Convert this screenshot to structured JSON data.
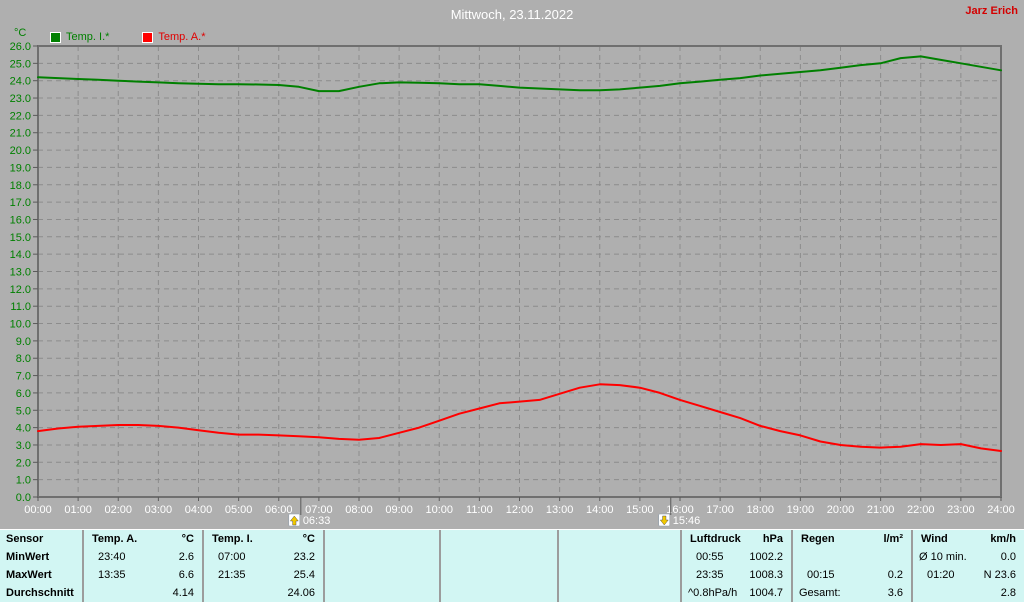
{
  "header": {
    "title": "Mittwoch, 23.11.2022",
    "owner": "Jarz Erich"
  },
  "legend": {
    "axis_unit": "°C",
    "items": [
      {
        "label": "Temp. I.*",
        "color": "#008000"
      },
      {
        "label": "Temp. A.*",
        "color": "#FF0000"
      }
    ]
  },
  "chart_data": {
    "type": "line",
    "title": "Mittwoch, 23.11.2022",
    "ylabel": "°C",
    "ylim": [
      0,
      26
    ],
    "ytick_step": 1.0,
    "xlim_hours": [
      0,
      24
    ],
    "x_ticks": [
      "00:00",
      "01:00",
      "02:00",
      "03:00",
      "04:00",
      "05:00",
      "06:00",
      "07:00",
      "08:00",
      "09:00",
      "10:00",
      "11:00",
      "12:00",
      "13:00",
      "14:00",
      "15:00",
      "16:00",
      "17:00",
      "18:00",
      "19:00",
      "20:00",
      "21:00",
      "22:00",
      "23:00",
      "24:00"
    ],
    "grid": true,
    "legend_position": "top-left",
    "series": [
      {
        "name": "Temp. I.*",
        "color": "#008000",
        "x_hours": [
          0,
          0.5,
          1,
          1.5,
          2,
          2.5,
          3,
          3.5,
          4,
          4.5,
          5,
          5.5,
          6,
          6.5,
          7,
          7.5,
          8,
          8.5,
          9,
          9.5,
          10,
          10.5,
          11,
          11.5,
          12,
          12.5,
          13,
          13.5,
          14,
          14.5,
          15,
          15.5,
          16,
          16.5,
          17,
          17.5,
          18,
          18.5,
          19,
          19.5,
          20,
          20.5,
          21,
          21.5,
          22,
          22.5,
          23,
          23.5,
          24
        ],
        "values": [
          24.2,
          24.15,
          24.1,
          24.05,
          24.0,
          23.95,
          23.9,
          23.85,
          23.82,
          23.8,
          23.8,
          23.78,
          23.75,
          23.65,
          23.4,
          23.4,
          23.65,
          23.85,
          23.9,
          23.88,
          23.85,
          23.8,
          23.8,
          23.7,
          23.6,
          23.55,
          23.5,
          23.45,
          23.45,
          23.5,
          23.6,
          23.7,
          23.85,
          23.95,
          24.05,
          24.15,
          24.3,
          24.4,
          24.5,
          24.6,
          24.75,
          24.9,
          25.0,
          25.3,
          25.4,
          25.2,
          25.0,
          24.8,
          24.6
        ]
      },
      {
        "name": "Temp. A.*",
        "color": "#FF0000",
        "x_hours": [
          0,
          0.5,
          1,
          1.5,
          2,
          2.5,
          3,
          3.5,
          4,
          4.5,
          5,
          5.5,
          6,
          6.5,
          7,
          7.5,
          8,
          8.5,
          9,
          9.5,
          10,
          10.5,
          11,
          11.5,
          12,
          12.5,
          13,
          13.5,
          14,
          14.5,
          15,
          15.5,
          16,
          16.5,
          17,
          17.5,
          18,
          18.5,
          19,
          19.5,
          20,
          20.5,
          21,
          21.5,
          22,
          22.5,
          23,
          23.5,
          24
        ],
        "values": [
          3.8,
          3.95,
          4.05,
          4.1,
          4.15,
          4.15,
          4.1,
          4.0,
          3.85,
          3.7,
          3.6,
          3.6,
          3.55,
          3.5,
          3.45,
          3.35,
          3.3,
          3.4,
          3.7,
          4.0,
          4.4,
          4.8,
          5.1,
          5.4,
          5.5,
          5.6,
          5.95,
          6.3,
          6.5,
          6.45,
          6.3,
          6.0,
          5.6,
          5.25,
          4.9,
          4.55,
          4.1,
          3.8,
          3.55,
          3.2,
          3.0,
          2.9,
          2.85,
          2.9,
          3.05,
          3.0,
          3.05,
          2.8,
          2.65
        ]
      }
    ],
    "annotations": [
      {
        "type": "sunrise",
        "label": "06:33",
        "hour": 6.55
      },
      {
        "type": "sunset",
        "label": "15:46",
        "hour": 15.77
      }
    ]
  },
  "stats_table": {
    "row_labels": [
      "Sensor",
      "MinWert",
      "MaxWert",
      "Durchschnitt"
    ],
    "columns": [
      {
        "name": "Temp. A.",
        "unit": "°C",
        "cells": [
          [
            "23:40",
            "2.6"
          ],
          [
            "13:35",
            "6.6"
          ],
          [
            "",
            "4.14"
          ]
        ]
      },
      {
        "name": "Temp. I.",
        "unit": "°C",
        "cells": [
          [
            "07:00",
            "23.2"
          ],
          [
            "21:35",
            "25.4"
          ],
          [
            "",
            "24.06"
          ]
        ]
      },
      {
        "name": "Luftdruck",
        "unit": "hPa",
        "cells": [
          [
            "00:55",
            "1002.2"
          ],
          [
            "23:35",
            "1008.3"
          ],
          [
            "^0.8hPa/h",
            "1004.7"
          ]
        ]
      },
      {
        "name": "Regen",
        "unit": "l/m²",
        "cells": [
          [
            "",
            ""
          ],
          [
            "00:15",
            "0.2"
          ],
          [
            "Gesamt:",
            "3.6"
          ]
        ]
      },
      {
        "name": "Wind",
        "unit": "km/h",
        "cells": [
          [
            "Ø 10 min.",
            "0.0"
          ],
          [
            "01:20",
            "N 23.6"
          ],
          [
            "",
            "2.8"
          ]
        ]
      }
    ]
  },
  "colors": {
    "background": "#AFAFAF",
    "grid": "#8C8C8C",
    "frame": "#6F6F6F",
    "tick": "#5A5A5A",
    "temp_i_line": "#008000",
    "temp_a_line": "#FF0000",
    "y_axis_text": "#008000",
    "x_axis_text": "#FFFFFF",
    "title_text": "#FFFFFF",
    "owner_text": "#D40000",
    "table_bg": "#D2F6F3",
    "table_border": "#9C9C9C",
    "sun_arrow": "#F0C800"
  }
}
